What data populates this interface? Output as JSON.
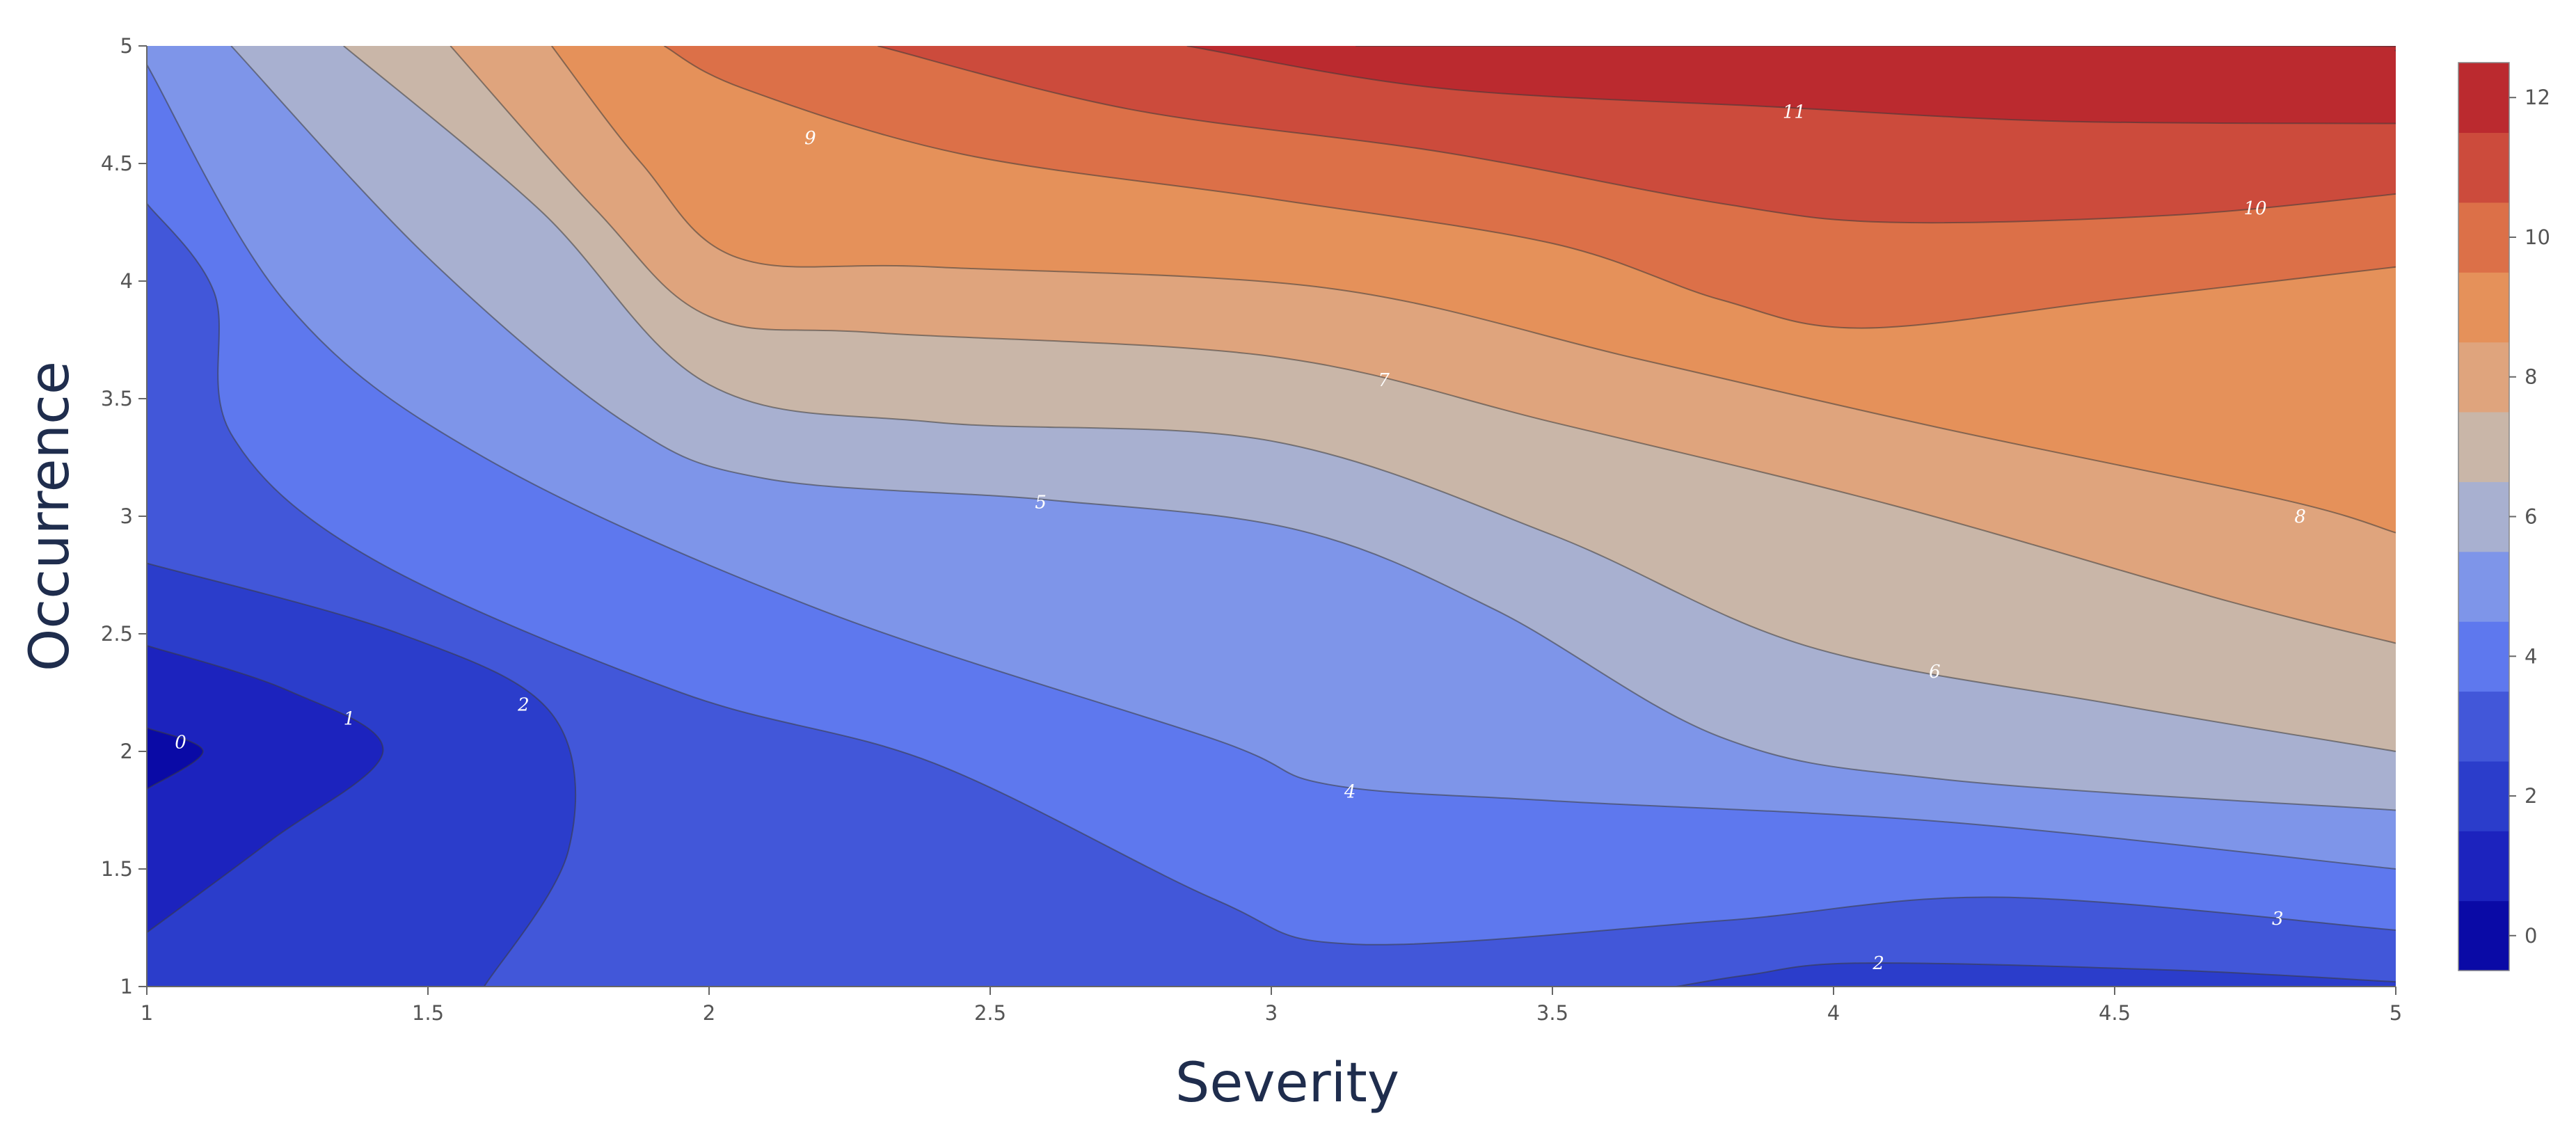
{
  "chart_data": {
    "type": "contour",
    "title": "",
    "xlabel": "Severity",
    "ylabel": "Occurrence",
    "xlim": [
      1,
      5
    ],
    "ylim": [
      1,
      5
    ],
    "x_ticks": [
      "1",
      "1.5",
      "2",
      "2.5",
      "3",
      "3.5",
      "4",
      "4.5",
      "5"
    ],
    "y_ticks": [
      "1",
      "1.5",
      "2",
      "2.5",
      "3",
      "3.5",
      "4",
      "4.5",
      "5"
    ],
    "colorbar": {
      "min": -0.5,
      "max": 12.5,
      "step": 1,
      "ticks": [
        "0",
        "2",
        "4",
        "6",
        "8",
        "10",
        "12"
      ],
      "band_colors": [
        "#0a0aa6",
        "#1c23be",
        "#2b3dcb",
        "#4257d9",
        "#5e78ee",
        "#7e95e9",
        "#a8b0d0",
        "#c9b6a8",
        "#dfa47d",
        "#e5915a",
        "#dc7048",
        "#cc4b3c",
        "#bb2a2f",
        "#b5091f"
      ]
    },
    "levels": [
      0,
      1,
      2,
      3,
      4,
      5,
      6,
      7,
      8,
      9,
      10,
      11,
      12
    ],
    "contour_labels": [
      {
        "text": "0",
        "x": 1.06,
        "y": 2.04
      },
      {
        "text": "1",
        "x": 1.36,
        "y": 2.14
      },
      {
        "text": "2",
        "x": 1.67,
        "y": 2.2
      },
      {
        "text": "9",
        "x": 2.18,
        "y": 4.61
      },
      {
        "text": "5",
        "x": 2.59,
        "y": 3.06
      },
      {
        "text": "7",
        "x": 3.2,
        "y": 3.58
      },
      {
        "text": "4",
        "x": 3.14,
        "y": 1.83
      },
      {
        "text": "11",
        "x": 3.93,
        "y": 4.72
      },
      {
        "text": "10",
        "x": 4.75,
        "y": 4.31
      },
      {
        "text": "8",
        "x": 4.83,
        "y": 3
      },
      {
        "text": "6",
        "x": 4.18,
        "y": 2.34
      },
      {
        "text": "3",
        "x": 4.79,
        "y": 1.29
      },
      {
        "text": "2",
        "x": 4.08,
        "y": 1.1
      }
    ]
  }
}
